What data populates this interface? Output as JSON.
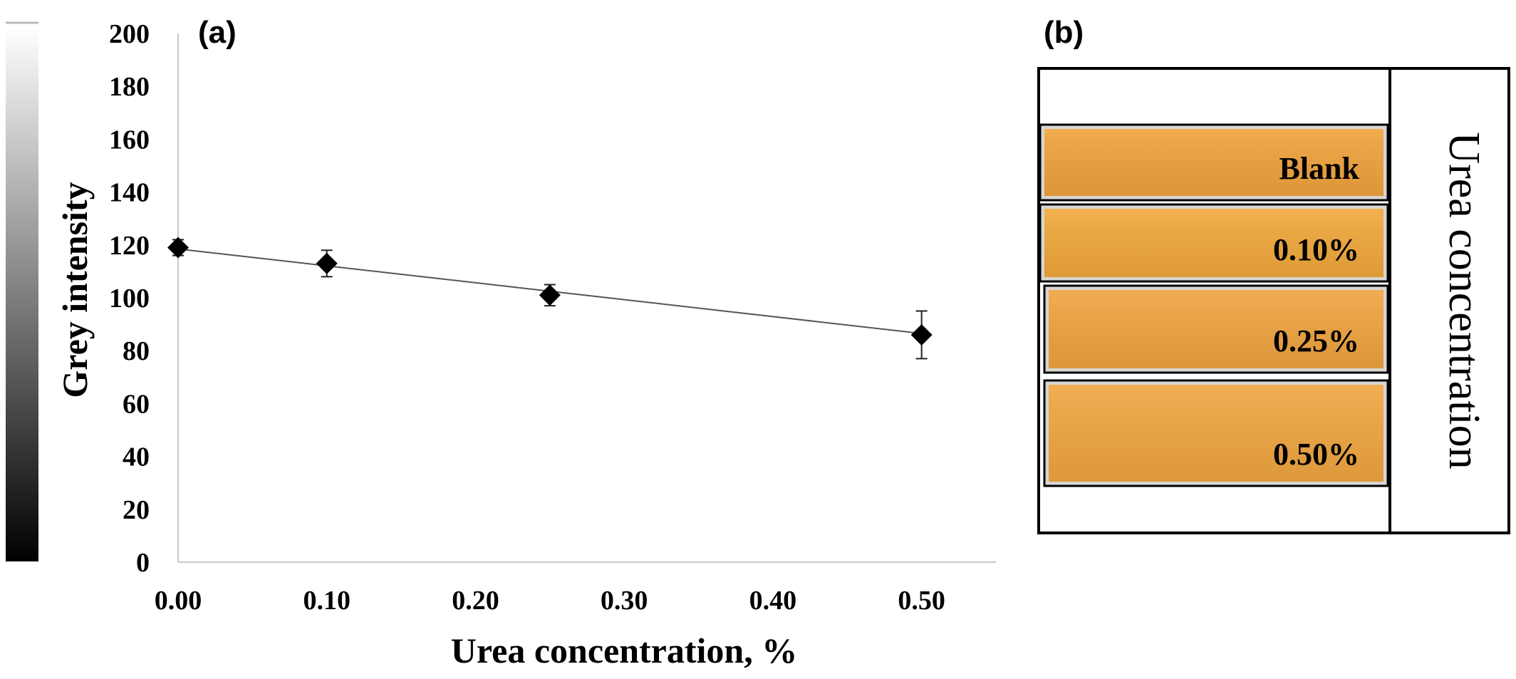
{
  "chart_data": {
    "type": "scatter",
    "panel_label": "(a)",
    "xlabel": "Urea concentration, %",
    "ylabel": "Grey intensity",
    "xlim": [
      0,
      0.55
    ],
    "ylim": [
      0,
      200
    ],
    "x_ticks": [
      "0.00",
      "0.10",
      "0.20",
      "0.30",
      "0.40",
      "0.50"
    ],
    "x_tick_values": [
      0,
      0.1,
      0.2,
      0.3,
      0.4,
      0.5
    ],
    "y_ticks": [
      "0",
      "20",
      "40",
      "60",
      "80",
      "100",
      "120",
      "140",
      "160",
      "180",
      "200"
    ],
    "y_tick_values": [
      0,
      20,
      40,
      60,
      80,
      100,
      120,
      140,
      160,
      180,
      200
    ],
    "grid": false,
    "series": [
      {
        "marker": "diamond",
        "color": "#000000",
        "x": [
          0,
          0.1,
          0.25,
          0.5
        ],
        "y": [
          119,
          113,
          101,
          86
        ],
        "error": [
          3,
          5,
          4,
          9
        ]
      }
    ],
    "trendline": {
      "type": "linear",
      "x": [
        0,
        0.5
      ],
      "y": [
        118.5,
        86.5
      ],
      "color": "#555555"
    },
    "colorbar": {
      "from": "#000000",
      "to": "#ffffff",
      "range": [
        0,
        200
      ]
    }
  },
  "photo_panel": {
    "panel_label": "(b)",
    "side_title": "Urea concentration",
    "strips": [
      {
        "label": "Blank",
        "dark_color": "#d9521f",
        "light_color": "#f0a33c"
      },
      {
        "label": "0.10%",
        "dark_color": "#d8541c",
        "light_color": "#f1a83b"
      },
      {
        "label": "0.25%",
        "dark_color": "#d2443e",
        "light_color": "#f0a43f"
      },
      {
        "label": "0.50%",
        "dark_color": "#b8293a",
        "light_color": "#f0a640"
      }
    ]
  }
}
